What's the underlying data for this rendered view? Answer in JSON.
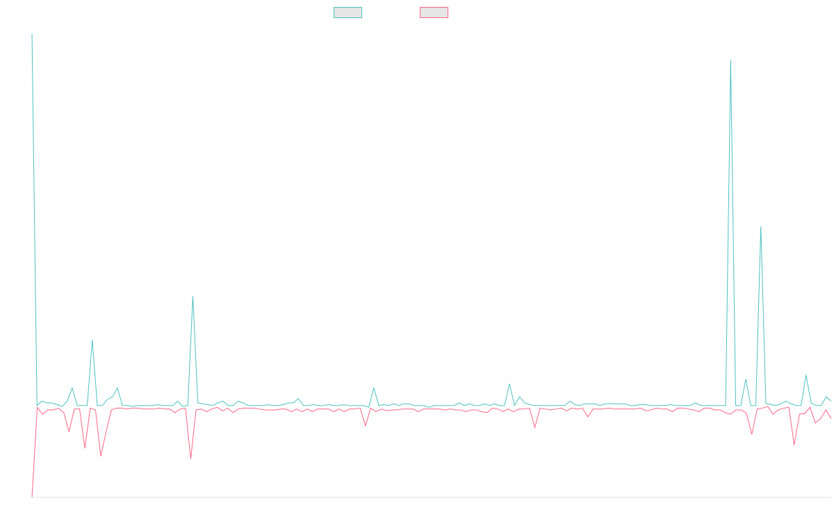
{
  "chart_data": {
    "type": "line",
    "title": "",
    "xlabel": "",
    "ylabel": "",
    "grid": false,
    "legend_placement": "top-center",
    "ylim": [
      -1,
      4.4
    ],
    "series": [
      {
        "name": "",
        "color": "#4bc0c0",
        "values": [
          4.3,
          0.05,
          0.1,
          0.08,
          0.08,
          0.06,
          0.04,
          0.1,
          0.25,
          0.05,
          0.05,
          0.05,
          0.8,
          0.05,
          0.05,
          0.12,
          0.15,
          0.25,
          0.05,
          0.05,
          0.04,
          0.05,
          0.05,
          0.05,
          0.05,
          0.06,
          0.05,
          0.05,
          0.05,
          0.1,
          0.04,
          0.05,
          1.3,
          0.08,
          0.07,
          0.06,
          0.05,
          0.08,
          0.1,
          0.05,
          0.05,
          0.1,
          0.08,
          0.05,
          0.05,
          0.05,
          0.05,
          0.06,
          0.05,
          0.05,
          0.06,
          0.08,
          0.08,
          0.13,
          0.05,
          0.05,
          0.06,
          0.05,
          0.05,
          0.06,
          0.05,
          0.05,
          0.06,
          0.05,
          0.05,
          0.05,
          0.05,
          0.03,
          0.25,
          0.05,
          0.06,
          0.05,
          0.07,
          0.05,
          0.07,
          0.07,
          0.05,
          0.05,
          0.05,
          0.03,
          0.05,
          0.05,
          0.05,
          0.05,
          0.05,
          0.08,
          0.05,
          0.07,
          0.05,
          0.05,
          0.07,
          0.05,
          0.07,
          0.05,
          0.05,
          0.3,
          0.05,
          0.15,
          0.08,
          0.06,
          0.05,
          0.05,
          0.05,
          0.05,
          0.05,
          0.05,
          0.05,
          0.1,
          0.06,
          0.05,
          0.07,
          0.07,
          0.07,
          0.05,
          0.07,
          0.07,
          0.07,
          0.07,
          0.07,
          0.05,
          0.05,
          0.06,
          0.06,
          0.05,
          0.05,
          0.05,
          0.05,
          0.06,
          0.05,
          0.05,
          0.05,
          0.05,
          0.08,
          0.05,
          0.05,
          0.05,
          0.05,
          0.05,
          0.05,
          4.0,
          0.05,
          0.05,
          0.35,
          0.05,
          0.05,
          2.1,
          0.07,
          0.06,
          0.05,
          0.07,
          0.1,
          0.07,
          0.05,
          0.05,
          0.4,
          0.08,
          0.05,
          0.05,
          0.15,
          0.1
        ]
      },
      {
        "name": "",
        "color": "#ff6384",
        "values": [
          -1.0,
          0.03,
          -0.05,
          0.0,
          0.0,
          0.02,
          -0.03,
          -0.25,
          0.01,
          0.01,
          -0.44,
          0.02,
          0.0,
          -0.53,
          -0.25,
          0.0,
          0.02,
          0.02,
          0.01,
          0.02,
          0.02,
          0.01,
          0.01,
          0.01,
          0.02,
          0.01,
          0.01,
          -0.03,
          0.01,
          0.02,
          -0.56,
          0.0,
          0.01,
          -0.02,
          0.01,
          0.03,
          -0.01,
          0.02,
          -0.03,
          0.01,
          0.02,
          0.02,
          0.02,
          0.01,
          0.0,
          0.0,
          0.0,
          0.01,
          0.01,
          -0.02,
          0.01,
          -0.02,
          0.01,
          -0.02,
          0.01,
          0.01,
          0.01,
          -0.02,
          0.01,
          -0.02,
          0.01,
          0.01,
          0.02,
          -0.18,
          0.02,
          -0.02,
          0.01,
          -0.01,
          0.0,
          0.0,
          0.01,
          0.01,
          0.01,
          -0.02,
          0.01,
          0.01,
          0.01,
          0.01,
          0.0,
          0.01,
          0.0,
          0.0,
          -0.02,
          0.0,
          0.0,
          -0.02,
          -0.03,
          0.02,
          0.01,
          -0.02,
          0.01,
          -0.02,
          0.01,
          0.01,
          0.02,
          -0.2,
          0.02,
          0.01,
          0.0,
          0.01,
          0.02,
          -0.01,
          0.02,
          0.01,
          0.02,
          -0.08,
          0.01,
          0.01,
          0.01,
          0.02,
          0.01,
          0.01,
          0.01,
          0.01,
          0.01,
          0.02,
          -0.01,
          0.0,
          0.02,
          0.01,
          0.01,
          -0.02,
          0.02,
          0.02,
          0.01,
          0.0,
          -0.02,
          0.02,
          0.02,
          0.0,
          0.0,
          -0.03,
          -0.05,
          0.0,
          0.0,
          -0.04,
          -0.28,
          0.01,
          0.02,
          0.04,
          -0.05,
          0.0,
          0.02,
          0.03,
          -0.4,
          -0.05,
          -0.04,
          0.03,
          -0.15,
          -0.1,
          0.0,
          -0.1
        ]
      }
    ]
  }
}
